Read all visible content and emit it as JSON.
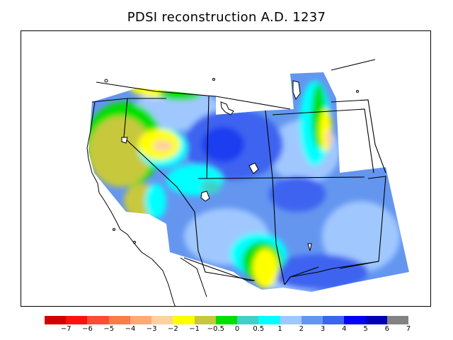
{
  "title": "PDSI reconstruction A.D. 1237",
  "legend": {
    "colors": [
      "#d20000",
      "#ff1010",
      "#ff4a3a",
      "#ff7a4a",
      "#ffa878",
      "#ffd0a0",
      "#ffff00",
      "#c8c83c",
      "#00e000",
      "#3cd2c8",
      "#00ffff",
      "#a0c8ff",
      "#6496f0",
      "#3c64f0",
      "#0000ff",
      "#0000b4",
      "#828282"
    ],
    "labels": [
      "−7",
      "−6",
      "−5",
      "−4",
      "−3",
      "−2",
      "−1",
      "−0.5",
      "0",
      "0.5",
      "1",
      "2",
      "3",
      "4",
      "5",
      "6",
      "7"
    ]
  }
}
